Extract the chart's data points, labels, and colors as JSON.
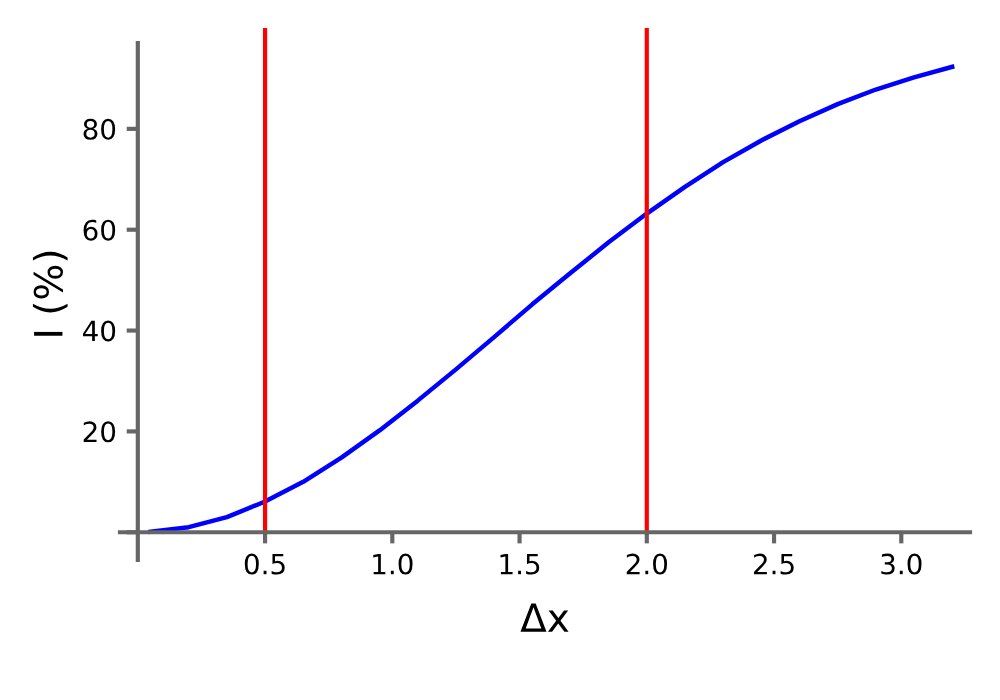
{
  "chart_data": {
    "type": "line",
    "xlabel": "Δx",
    "ylabel": "I (%)",
    "x": [
      0.05,
      0.2,
      0.35,
      0.5,
      0.65,
      0.8,
      0.95,
      1.1,
      1.25,
      1.4,
      1.55,
      1.7,
      1.85,
      2.0,
      2.15,
      2.3,
      2.45,
      2.6,
      2.75,
      2.9,
      3.05,
      3.2
    ],
    "series": [
      {
        "color": "#0000ff",
        "values": [
          0.1,
          1.0,
          3.0,
          6.1,
          10.0,
          14.8,
          20.2,
          26.1,
          32.3,
          38.7,
          45.2,
          51.4,
          57.5,
          63.2,
          68.5,
          73.4,
          77.7,
          81.5,
          84.9,
          87.8,
          90.2,
          92.3
        ]
      }
    ],
    "xlim": [
      -0.07,
      3.27
    ],
    "ylim": [
      -5.5,
      100
    ],
    "xticks": [
      0.5,
      {
        "value": 1,
        "label": "1.0"
      },
      1.5,
      {
        "value": 2,
        "label": "2.0"
      },
      2.5,
      {
        "value": 3,
        "label": "3.0"
      }
    ],
    "yticks": [
      {
        "value": 0,
        "label": null
      },
      20,
      40,
      60,
      80
    ],
    "ref_lines": [
      {
        "axis": "x",
        "value": 0.5,
        "color": "#ff0000"
      },
      {
        "axis": "x",
        "value": 2.0,
        "color": "#ff0000"
      }
    ],
    "grid": false,
    "legend": false,
    "marker": "none",
    "line_style": "solid"
  }
}
